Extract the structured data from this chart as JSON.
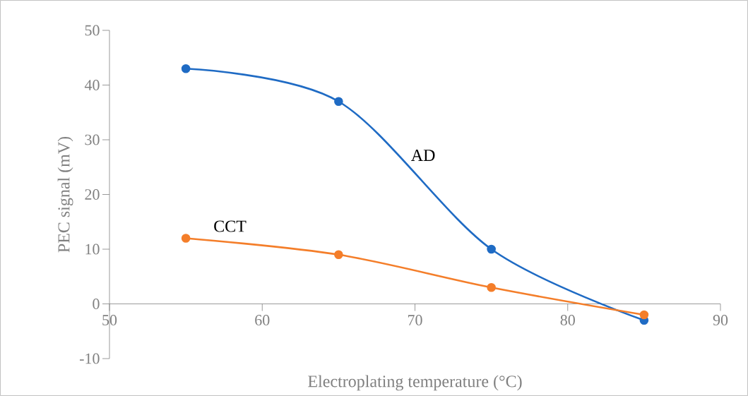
{
  "chart_data": {
    "type": "line",
    "xlabel": "Electroplating temperature (°C)",
    "ylabel": "PEC signal (mV)",
    "x": [
      55,
      65,
      75,
      85
    ],
    "series": [
      {
        "name": "AD",
        "color": "#1f6bc4",
        "values": [
          43,
          37,
          10,
          -3
        ]
      },
      {
        "name": "CCT",
        "color": "#f47e2a",
        "values": [
          12,
          9,
          3,
          -2
        ]
      }
    ],
    "xlim": [
      50,
      90
    ],
    "xticks": [
      50,
      60,
      70,
      80,
      90
    ],
    "ylim": [
      -10,
      50
    ],
    "yticks": [
      -10,
      0,
      10,
      20,
      30,
      40,
      50
    ],
    "marker": "circle",
    "line_style": "solid"
  }
}
